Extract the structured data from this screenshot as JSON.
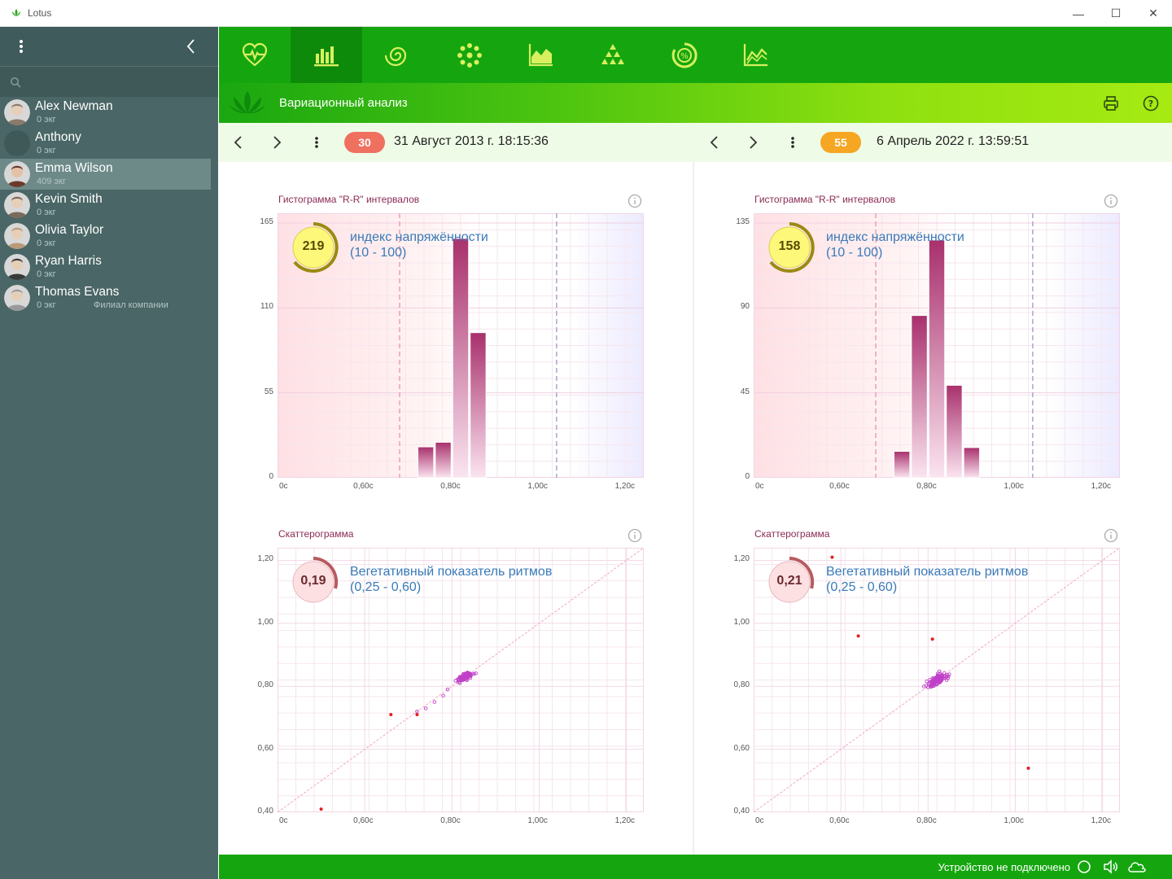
{
  "window": {
    "title": "Lotus",
    "controls": [
      "—",
      "☐",
      "✕"
    ]
  },
  "sidebar": {
    "search": {
      "value": "",
      "placeholder": ""
    },
    "contacts": [
      {
        "name": "Alex Newman",
        "sub": "0 экг",
        "branch": ""
      },
      {
        "name": "Anthony",
        "sub": "0 экг",
        "branch": ""
      },
      {
        "name": "Emma Wilson",
        "sub": "409 экг",
        "branch": "",
        "selected": true
      },
      {
        "name": "Kevin Smith",
        "sub": "0 экг",
        "branch": ""
      },
      {
        "name": "Olivia Taylor",
        "sub": "0 экг",
        "branch": ""
      },
      {
        "name": "Ryan Harris",
        "sub": "0 экг",
        "branch": ""
      },
      {
        "name": "Thomas Evans",
        "sub": "0 экг",
        "branch": "Филиал компании"
      }
    ]
  },
  "nav": {
    "tabs": [
      {
        "icon": "heart-pulse-icon"
      },
      {
        "icon": "histogram-icon",
        "active": true
      },
      {
        "icon": "spiral-icon"
      },
      {
        "icon": "cluster-icon"
      },
      {
        "icon": "area-chart-icon"
      },
      {
        "icon": "pyramid-icon"
      },
      {
        "icon": "percent-circle-icon"
      },
      {
        "icon": "line-chart-icon"
      }
    ]
  },
  "header": {
    "title": "Вариационный анализ",
    "print_icon": "printer-icon",
    "help_icon": "help-icon"
  },
  "records": [
    {
      "badge": "30",
      "badge_color": "#f07060",
      "date": "31 Август 2013 г. 18:15:36"
    },
    {
      "badge": "55",
      "badge_color": "#f5a623",
      "date": "6 Апрель 2022 г. 13:59:51"
    }
  ],
  "panels": [
    {
      "hist_title": "Гистограмма \"R-R\" интервалов",
      "scatter_title": "Скаттерограмма",
      "tension": {
        "value": "219",
        "label": "индекс напряжённости",
        "range": "(10 - 100)"
      },
      "vegetative": {
        "value": "0,19",
        "label": "Вегетативный показатель ритмов",
        "range": "(0,25 - 0,60)"
      }
    },
    {
      "hist_title": "Гистограмма \"R-R\" интервалов",
      "scatter_title": "Скаттерограмма",
      "tension": {
        "value": "158",
        "label": "индекс напряжённости",
        "range": "(10 - 100)"
      },
      "vegetative": {
        "value": "0,21",
        "label": "Вегетативный показатель ритмов",
        "range": "(0,25 - 0,60)"
      }
    }
  ],
  "chart_data": [
    {
      "type": "bar",
      "title": "Гистограмма \"R-R\" интервалов",
      "x_ticks": [
        "0с",
        "0,60с",
        "0,80с",
        "1,00с",
        "1,20с"
      ],
      "y_ticks": [
        "0",
        "55",
        "110",
        "165"
      ],
      "ylim": [
        0,
        165
      ],
      "bin_width": 0.04,
      "bars": [
        {
          "x": 0.74,
          "y": 20
        },
        {
          "x": 0.78,
          "y": 23
        },
        {
          "x": 0.82,
          "y": 155
        },
        {
          "x": 0.86,
          "y": 94
        }
      ],
      "ref_lines": [
        0.68,
        1.04
      ]
    },
    {
      "type": "bar",
      "title": "Гистограмма \"R-R\" интервалов",
      "x_ticks": [
        "0с",
        "0,60с",
        "0,80с",
        "1,00с",
        "1,20с"
      ],
      "y_ticks": [
        "0",
        "45",
        "90",
        "135"
      ],
      "ylim": [
        0,
        135
      ],
      "bin_width": 0.04,
      "bars": [
        {
          "x": 0.74,
          "y": 14
        },
        {
          "x": 0.78,
          "y": 86
        },
        {
          "x": 0.82,
          "y": 126
        },
        {
          "x": 0.86,
          "y": 49
        },
        {
          "x": 0.9,
          "y": 16
        }
      ],
      "ref_lines": [
        0.68,
        1.04
      ]
    },
    {
      "type": "scatter",
      "title": "Скаттерограмма",
      "x_ticks": [
        "0с",
        "0,60с",
        "0,80с",
        "1,00с",
        "1,20с"
      ],
      "y_ticks": [
        "0,40",
        "0,60",
        "0,80",
        "1,00",
        "1,20"
      ],
      "cluster": {
        "x": 0.83,
        "y": 0.83,
        "spread": 0.025,
        "n": 140
      },
      "tail": [
        [
          0.72,
          0.72
        ],
        [
          0.74,
          0.73
        ],
        [
          0.76,
          0.75
        ],
        [
          0.78,
          0.77
        ],
        [
          0.79,
          0.79
        ]
      ],
      "outliers": [
        [
          0.66,
          0.71
        ],
        [
          0.5,
          0.41
        ],
        [
          0.72,
          0.71
        ]
      ]
    },
    {
      "type": "scatter",
      "title": "Скаттерограмма",
      "x_ticks": [
        "0с",
        "0,60с",
        "0,80с",
        "1,00с",
        "1,20с"
      ],
      "y_ticks": [
        "0,40",
        "0,60",
        "0,80",
        "1,00",
        "1,20"
      ],
      "cluster": {
        "x": 0.82,
        "y": 0.82,
        "spread": 0.035,
        "n": 160
      },
      "tail": [],
      "outliers": [
        [
          0.58,
          1.21
        ],
        [
          0.64,
          0.96
        ],
        [
          0.81,
          0.95
        ],
        [
          1.03,
          0.54
        ]
      ]
    }
  ],
  "status": {
    "text": "Устройство не подключено",
    "icons": [
      "device-circle-icon",
      "speaker-icon",
      "cloud-icon"
    ]
  }
}
